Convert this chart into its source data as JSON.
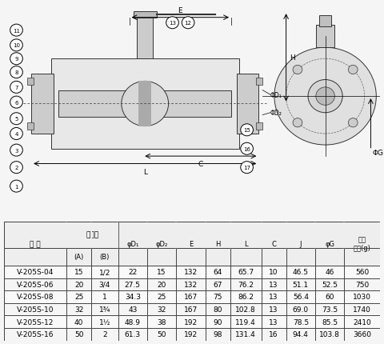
{
  "title": "",
  "table_header_row1": [
    "型 式",
    "呼び径",
    "",
    "φD₁",
    "φD₂",
    "E",
    "H",
    "L",
    "C",
    "J",
    "φG",
    "概算\n重量(g)"
  ],
  "table_header_row2": [
    "",
    "(A)",
    "(B)",
    "",
    "",
    "",
    "",
    "",
    "",
    "",
    "",
    ""
  ],
  "col_labels": [
    "型 式",
    "(A)",
    "(B)",
    "φD₁",
    "φD₂",
    "E",
    "H",
    "L",
    "C",
    "J",
    "φG",
    "概算\n重量(g)"
  ],
  "rows": [
    [
      "V-205S-04",
      "15",
      "1/2",
      "22",
      "15",
      "132",
      "64",
      "65.7",
      "10",
      "46.5",
      "46",
      "560"
    ],
    [
      "V-205S-06",
      "20",
      "3/4",
      "27.5",
      "20",
      "132",
      "67",
      "76.2",
      "13",
      "51.1",
      "52.5",
      "750"
    ],
    [
      "V-205S-08",
      "25",
      "1",
      "34.3",
      "25",
      "167",
      "75",
      "86.2",
      "13",
      "56.4",
      "60",
      "1030"
    ],
    [
      "V-205S-10",
      "32",
      "1¾",
      "43",
      "32",
      "167",
      "80",
      "102.8",
      "13",
      "69.0",
      "73.5",
      "1740"
    ],
    [
      "V-205S-12",
      "40",
      "1½",
      "48.9",
      "38",
      "192",
      "90",
      "119.4",
      "13",
      "78.5",
      "85.5",
      "2410"
    ],
    [
      "V-205S-16",
      "50",
      "2",
      "61.3",
      "50",
      "192",
      "98",
      "131.4",
      "16",
      "94.4",
      "103.8",
      "3660"
    ]
  ],
  "bg_color": "#f0f0f0",
  "table_bg": "#ffffff",
  "header_bg": "#e8e8e8",
  "line_color": "#333333",
  "font_size": 7,
  "header_font_size": 7.5
}
